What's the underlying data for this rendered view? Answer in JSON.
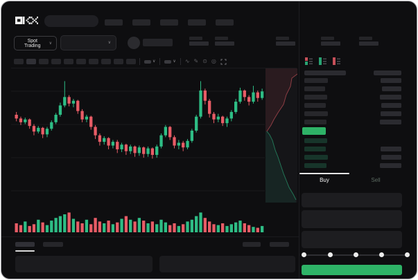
{
  "app": {
    "brand": "OKX"
  },
  "header": {
    "market_selector_label": "Spot Trading",
    "chevron": "∨",
    "nav_item_count": 5,
    "ticker_stat_count": 5
  },
  "toolbar": {
    "interval_button_count": 10
  },
  "colors": {
    "up": "#2ebd85",
    "down": "#e85c66",
    "accent": "#2eb367",
    "depth_ask": "#e85c66",
    "depth_bid": "#2ebd85"
  },
  "orderbook": {
    "view_toggle_icons": [
      "combined-book-icon",
      "bids-book-icon",
      "asks-book-icon"
    ],
    "asks": [
      {
        "pw": 34,
        "aw": 30
      },
      {
        "pw": 30,
        "aw": 28
      },
      {
        "pw": 33,
        "aw": 31
      },
      {
        "pw": 31,
        "aw": 29
      },
      {
        "pw": 34,
        "aw": 30
      },
      {
        "pw": 32,
        "aw": 31
      }
    ],
    "last_price_pill": {
      "highlighted": true
    },
    "bids": [
      {
        "pw": 33,
        "aw": 0
      },
      {
        "pw": 31,
        "aw": 30
      },
      {
        "pw": 34,
        "aw": 29
      },
      {
        "pw": 32,
        "aw": 31
      }
    ]
  },
  "trade_panel": {
    "buy_label": "Buy",
    "sell_label": "Sell",
    "slider": {
      "stops": 5,
      "active_stop": 0
    },
    "field_count": 3
  },
  "chart_data": [
    {
      "type": "candlestick",
      "title": "",
      "x_count": 57,
      "price_scale_norm": [
        0,
        100
      ],
      "candles_ochl": [
        [
          60,
          56,
          63,
          53
        ],
        [
          56,
          52,
          58,
          49
        ],
        [
          52,
          55,
          57,
          50
        ],
        [
          55,
          48,
          56,
          45
        ],
        [
          48,
          42,
          50,
          38
        ],
        [
          42,
          46,
          48,
          40
        ],
        [
          46,
          39,
          47,
          35
        ],
        [
          39,
          45,
          47,
          36
        ],
        [
          45,
          52,
          54,
          43
        ],
        [
          52,
          60,
          62,
          50
        ],
        [
          60,
          70,
          73,
          58
        ],
        [
          70,
          79,
          96,
          68
        ],
        [
          79,
          72,
          81,
          69
        ],
        [
          72,
          75,
          77,
          68
        ],
        [
          75,
          64,
          76,
          61
        ],
        [
          64,
          55,
          66,
          52
        ],
        [
          55,
          58,
          60,
          52
        ],
        [
          58,
          47,
          59,
          44
        ],
        [
          47,
          38,
          49,
          34
        ],
        [
          38,
          31,
          40,
          27
        ],
        [
          31,
          35,
          37,
          28
        ],
        [
          35,
          27,
          36,
          23
        ],
        [
          27,
          31,
          33,
          24
        ],
        [
          31,
          23,
          33,
          19
        ],
        [
          23,
          28,
          30,
          20
        ],
        [
          28,
          21,
          29,
          17
        ],
        [
          21,
          26,
          28,
          18
        ],
        [
          26,
          19,
          27,
          15
        ],
        [
          19,
          25,
          27,
          16
        ],
        [
          25,
          18,
          26,
          14
        ],
        [
          18,
          24,
          26,
          15
        ],
        [
          24,
          17,
          25,
          13
        ],
        [
          17,
          26,
          28,
          14
        ],
        [
          26,
          38,
          40,
          24
        ],
        [
          38,
          47,
          49,
          36
        ],
        [
          47,
          36,
          48,
          33
        ],
        [
          36,
          27,
          38,
          24
        ],
        [
          27,
          30,
          33,
          23
        ],
        [
          30,
          25,
          32,
          21
        ],
        [
          25,
          32,
          34,
          23
        ],
        [
          32,
          43,
          45,
          30
        ],
        [
          43,
          58,
          60,
          41
        ],
        [
          58,
          86,
          96,
          56
        ],
        [
          86,
          75,
          88,
          71
        ],
        [
          75,
          61,
          77,
          57
        ],
        [
          61,
          55,
          63,
          51
        ],
        [
          55,
          58,
          61,
          52
        ],
        [
          58,
          51,
          59,
          48
        ],
        [
          51,
          56,
          58,
          47
        ],
        [
          56,
          63,
          65,
          53
        ],
        [
          63,
          74,
          77,
          61
        ],
        [
          74,
          86,
          89,
          72
        ],
        [
          86,
          79,
          87,
          75
        ],
        [
          79,
          74,
          81,
          70
        ],
        [
          74,
          84,
          91,
          72
        ],
        [
          84,
          78,
          86,
          74
        ],
        [
          78,
          85,
          88,
          76
        ]
      ]
    },
    {
      "type": "bar",
      "title": "volume",
      "values": [
        10,
        8,
        12,
        7,
        9,
        14,
        11,
        8,
        13,
        16,
        18,
        20,
        22,
        15,
        12,
        10,
        14,
        9,
        16,
        12,
        10,
        13,
        9,
        11,
        15,
        18,
        14,
        12,
        16,
        13,
        10,
        12,
        9,
        14,
        11,
        8,
        10,
        7,
        9,
        12,
        14,
        18,
        22,
        16,
        12,
        9,
        8,
        10,
        7,
        9,
        11,
        13,
        10,
        8,
        6,
        5,
        7
      ]
    },
    {
      "type": "area",
      "title": "depth",
      "orientation": "vertical",
      "series": [
        {
          "name": "asks",
          "steps": [
            [
              46,
              8
            ],
            [
              38,
              14
            ],
            [
              36,
              26
            ],
            [
              30,
              38
            ],
            [
              26,
              52
            ],
            [
              18,
              64
            ],
            [
              12,
              74
            ],
            [
              8,
              82
            ],
            [
              4,
              88
            ],
            [
              2,
              91
            ]
          ]
        },
        {
          "name": "bids",
          "steps": [
            [
              2,
              91
            ],
            [
              6,
              96
            ],
            [
              10,
              104
            ],
            [
              14,
              118
            ],
            [
              18,
              128
            ],
            [
              22,
              140
            ],
            [
              26,
              152
            ],
            [
              30,
              162
            ],
            [
              34,
              172
            ],
            [
              40,
              182
            ],
            [
              44,
              190
            ]
          ]
        }
      ]
    }
  ]
}
